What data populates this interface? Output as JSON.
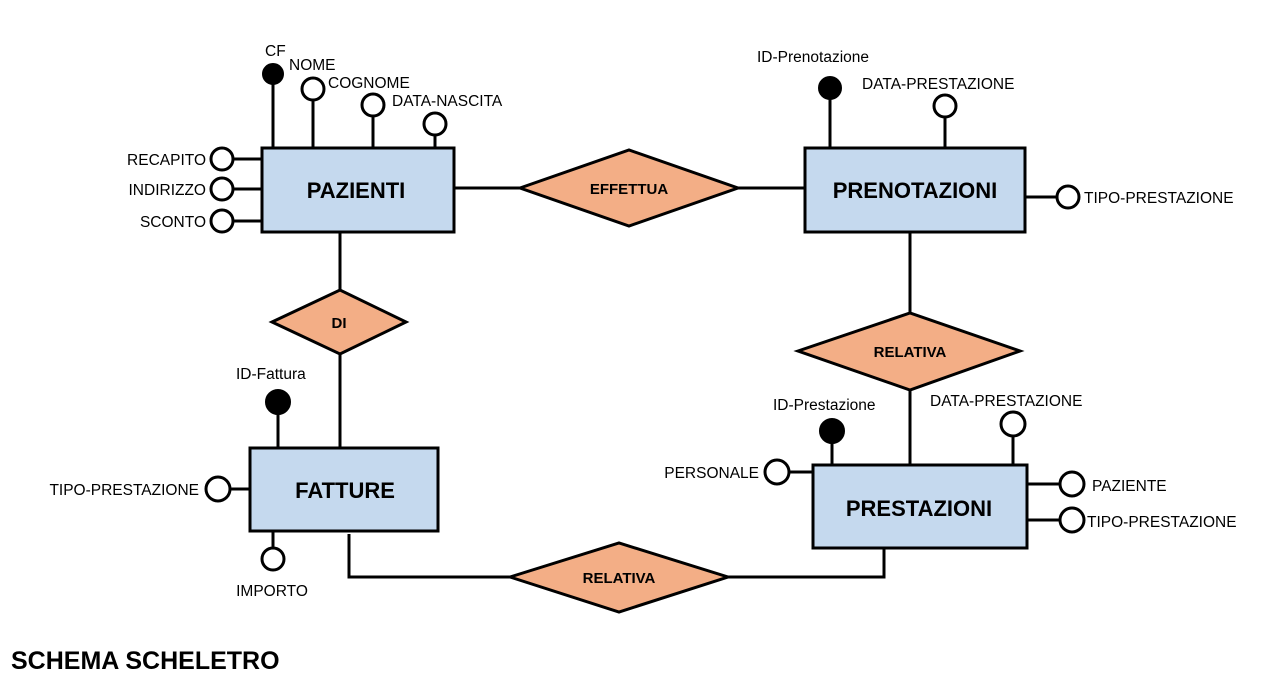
{
  "diagram": {
    "title": "SCHEMA SCHELETRO",
    "entities": {
      "pazienti": "PAZIENTI",
      "prenotazioni": "PRENOTAZIONI",
      "fatture": "FATTURE",
      "prestazioni": "PRESTAZIONI"
    },
    "relationships": {
      "effettua": "EFFETTUA",
      "di": "DI",
      "relativa_top": "RELATIVA",
      "relativa_bottom": "RELATIVA"
    },
    "attributes": {
      "pazienti": {
        "cf": "CF",
        "nome": "NOME",
        "cognome": "COGNOME",
        "data_nascita": "DATA-NASCITA",
        "recapito": "RECAPITO",
        "indirizzo": "INDIRIZZO",
        "sconto": "SCONTO"
      },
      "prenotazioni": {
        "id": "ID-Prenotazione",
        "data_prestazione": "DATA-PRESTAZIONE",
        "tipo_prestazione": "TIPO-PRESTAZIONE"
      },
      "fatture": {
        "id": "ID-Fattura",
        "tipo_prestazione": "TIPO-PRESTAZIONE",
        "importo": "IMPORTO"
      },
      "prestazioni": {
        "id": "ID-Prestazione",
        "data_prestazione": "DATA-PRESTAZIONE",
        "personale": "PERSONALE",
        "paziente": "PAZIENTE",
        "tipo_prestazione": "TIPO-PRESTAZIONE"
      }
    }
  }
}
